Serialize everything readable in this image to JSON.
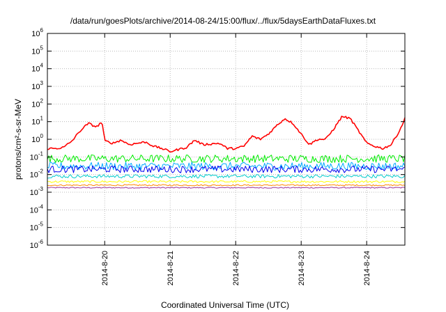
{
  "chart_data": {
    "type": "line",
    "title": "/data/run/goesPlots/archive/2014-08-24/15:00/flux/../flux/5daysEarthDataFluxes.txt",
    "xlabel": "Coordinated Universal Time (UTC)",
    "ylabel": "protons/cm²-s-sr-MeV",
    "y_scale": "log",
    "y_range": [
      1e-06,
      1000000.0
    ],
    "y_tick_labels": [
      {
        "base": "10",
        "exp": "-6"
      },
      {
        "base": "10",
        "exp": "-5"
      },
      {
        "base": "10",
        "exp": "-4"
      },
      {
        "base": "10",
        "exp": "-3"
      },
      {
        "base": "10",
        "exp": "-2"
      },
      {
        "base": "10",
        "exp": "-1"
      },
      {
        "base": "10",
        "exp": "0"
      },
      {
        "base": "10",
        "exp": "1"
      },
      {
        "base": "10",
        "exp": "2"
      },
      {
        "base": "10",
        "exp": "3"
      },
      {
        "base": "10",
        "exp": "4"
      },
      {
        "base": "10",
        "exp": "5"
      },
      {
        "base": "10",
        "exp": "6"
      }
    ],
    "x_range_days": [
      "2014-08-19 03:00",
      "2014-08-24 14:00"
    ],
    "x_ticks": [
      "2014-8-20",
      "2014-8-21",
      "2014-8-22",
      "2014-8-23",
      "2014-8-24"
    ],
    "grid": true,
    "series": [
      {
        "color": "#ff0000",
        "x": [
          "2014-08-19 03:00",
          "2014-08-19 06:00",
          "2014-08-19 09:00",
          "2014-08-19 12:00",
          "2014-08-19 15:00",
          "2014-08-19 18:00",
          "2014-08-19 21:00",
          "2014-08-19 23:00",
          "2014-08-20 00:00",
          "2014-08-20 03:00",
          "2014-08-20 06:00",
          "2014-08-20 09:00",
          "2014-08-20 12:00",
          "2014-08-20 15:00",
          "2014-08-20 18:00",
          "2014-08-20 21:00",
          "2014-08-21 00:00",
          "2014-08-21 06:00",
          "2014-08-21 09:00",
          "2014-08-21 12:00",
          "2014-08-21 18:00",
          "2014-08-21 21:00",
          "2014-08-22 00:00",
          "2014-08-22 03:00",
          "2014-08-22 06:00",
          "2014-08-22 09:00",
          "2014-08-22 12:00",
          "2014-08-22 15:00",
          "2014-08-22 18:00",
          "2014-08-22 21:00",
          "2014-08-23 00:00",
          "2014-08-23 03:00",
          "2014-08-23 06:00",
          "2014-08-23 09:00",
          "2014-08-23 12:00",
          "2014-08-23 15:00",
          "2014-08-23 18:00",
          "2014-08-23 21:00",
          "2014-08-24 00:00",
          "2014-08-24 03:00",
          "2014-08-24 06:00",
          "2014-08-24 09:00",
          "2014-08-24 12:00",
          "2014-08-24 14:00"
        ],
        "values": [
          0.3,
          0.3,
          0.35,
          0.8,
          3,
          8,
          5,
          10,
          0.8,
          0.6,
          0.9,
          0.5,
          0.6,
          0.7,
          0.4,
          0.3,
          0.2,
          0.35,
          0.9,
          0.5,
          0.6,
          0.3,
          0.3,
          0.4,
          1.5,
          1,
          2,
          6,
          15,
          8,
          2,
          0.5,
          1,
          1,
          4,
          20,
          15,
          3,
          0.6,
          0.4,
          0.3,
          0.5,
          3,
          15
        ]
      },
      {
        "color": "#00ee00",
        "x": [
          "2014-08-19 03:00",
          "2014-08-24 14:00"
        ],
        "values": [
          0.08,
          0.08
        ]
      },
      {
        "color": "#00aaff",
        "x": [
          "2014-08-19 03:00",
          "2014-08-24 14:00"
        ],
        "values": [
          0.03,
          0.03
        ]
      },
      {
        "color": "#0000ee",
        "x": [
          "2014-08-19 03:00",
          "2014-08-24 14:00"
        ],
        "values": [
          0.02,
          0.02
        ]
      },
      {
        "color": "#00cccc",
        "x": [
          "2014-08-19 03:00",
          "2014-08-24 14:00"
        ],
        "values": [
          0.008,
          0.008
        ]
      },
      {
        "color": "#ffff00",
        "x": [
          "2014-08-19 03:00",
          "2014-08-24 14:00"
        ],
        "values": [
          0.004,
          0.004
        ]
      },
      {
        "color": "#ff8800",
        "x": [
          "2014-08-19 03:00",
          "2014-08-24 14:00"
        ],
        "values": [
          0.0025,
          0.0025
        ]
      },
      {
        "color": "#993399",
        "x": [
          "2014-08-19 03:00",
          "2014-08-24 14:00"
        ],
        "values": [
          0.0018,
          0.0018
        ]
      }
    ]
  }
}
